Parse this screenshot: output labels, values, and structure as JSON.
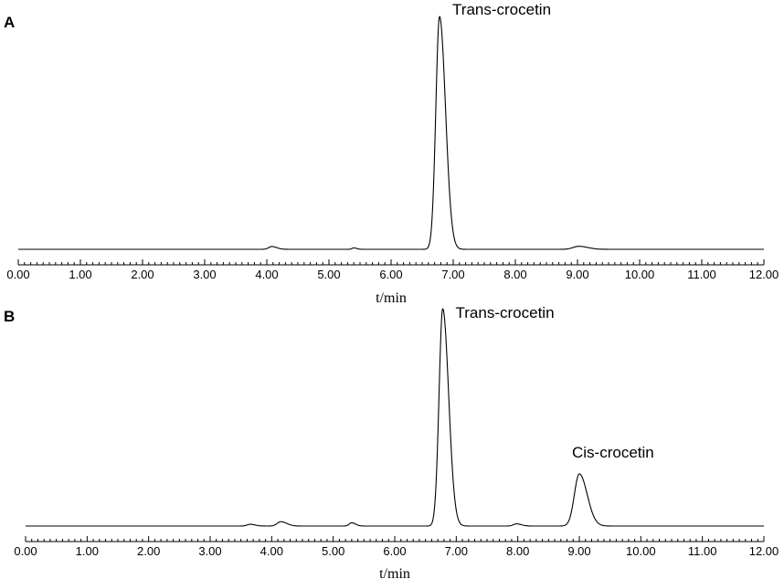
{
  "chart_data": [
    {
      "type": "line",
      "panel_label": "A",
      "xlabel": "t/min",
      "xlim": [
        0,
        12
      ],
      "x_ticks": [
        "0.00",
        "1.00",
        "2.00",
        "3.00",
        "4.00",
        "5.00",
        "6.00",
        "7.00",
        "8.00",
        "9.00",
        "10.00",
        "11.00",
        "12.00"
      ],
      "ylim": [
        0,
        100
      ],
      "grid": false,
      "peaks": [
        {
          "label": "Trans-crocetin",
          "x": 6.78,
          "height": 100,
          "width": 0.06
        },
        {
          "label": "",
          "x": 4.08,
          "height": 1.2,
          "width": 0.05
        },
        {
          "label": "",
          "x": 5.4,
          "height": 0.6,
          "width": 0.03
        },
        {
          "label": "",
          "x": 9.02,
          "height": 1.3,
          "width": 0.09
        }
      ]
    },
    {
      "type": "line",
      "panel_label": "B",
      "xlabel": "t/min",
      "xlim": [
        0,
        12
      ],
      "x_ticks": [
        "0.00",
        "1.00",
        "2.00",
        "3.00",
        "4.00",
        "5.00",
        "6.00",
        "7.00",
        "8.00",
        "9.00",
        "10.00",
        "11.00",
        "12.00"
      ],
      "ylim": [
        0,
        100
      ],
      "grid": false,
      "peaks": [
        {
          "label": "Trans-crocetin",
          "x": 6.78,
          "height": 100,
          "width": 0.06
        },
        {
          "label": "Cis-crocetin",
          "x": 9.0,
          "height": 24,
          "width": 0.08
        },
        {
          "label": "",
          "x": 4.15,
          "height": 2.0,
          "width": 0.06
        },
        {
          "label": "",
          "x": 5.3,
          "height": 1.5,
          "width": 0.04
        },
        {
          "label": "",
          "x": 7.98,
          "height": 1.0,
          "width": 0.05
        },
        {
          "label": "",
          "x": 3.65,
          "height": 0.8,
          "width": 0.05
        }
      ]
    }
  ]
}
